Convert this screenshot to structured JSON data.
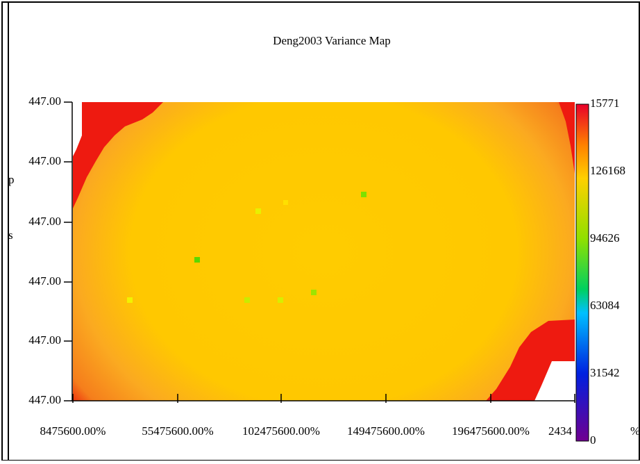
{
  "window": {
    "title": "Deng2003 Variance Map",
    "y_tick_labels": [
      "447.00",
      "447.00",
      "447.00",
      "447.00",
      "447.00",
      "447.00"
    ],
    "x_tick_labels": [
      "8475600.00%",
      "55475600.00%",
      "102475600.00%",
      "149475600.00%",
      "196475600.00%",
      "2434"
    ],
    "colorbar_labels": [
      "15771",
      "126168",
      "94626",
      "63084",
      "31542",
      "0"
    ],
    "colorbar_unit": "%"
  }
}
